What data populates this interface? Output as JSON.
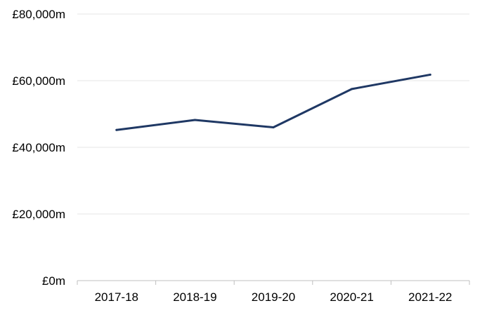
{
  "colors": {
    "series": "#1f3864",
    "gridline": "#e6e6e6",
    "axis": "#bfbfbf"
  },
  "chart_data": {
    "type": "line",
    "title": "",
    "xlabel": "",
    "ylabel": "",
    "categories": [
      "2017-18",
      "2018-19",
      "2019-20",
      "2020-21",
      "2021-22"
    ],
    "series": [
      {
        "values": [
          45200,
          48200,
          46000,
          57500,
          61800
        ]
      }
    ],
    "ylim": [
      0,
      80000
    ],
    "yticks": [
      0,
      20000,
      40000,
      60000,
      80000
    ],
    "ytick_labels": [
      "£0m",
      "£20,000m",
      "£40,000m",
      "£60,000m",
      "£80,000m"
    ],
    "grid": true,
    "legend": "none"
  }
}
